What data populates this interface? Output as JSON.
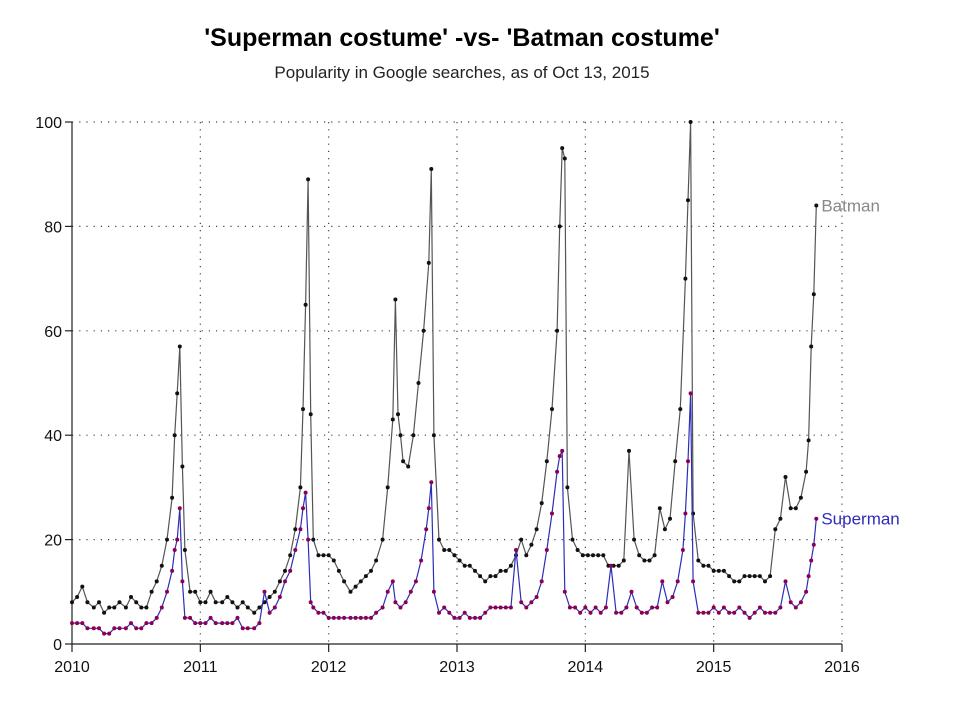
{
  "chart_data": {
    "type": "line",
    "title": "'Superman costume' -vs- 'Batman costume'",
    "subtitle": "Popularity in Google searches, as of Oct 13, 2015",
    "xlabel": "",
    "ylabel": "",
    "xlim": [
      2010,
      2016
    ],
    "ylim": [
      0,
      100
    ],
    "x_ticks": [
      "2010",
      "2011",
      "2012",
      "2013",
      "2014",
      "2015",
      "2016"
    ],
    "y_ticks": [
      "0",
      "20",
      "40",
      "60",
      "80",
      "100"
    ],
    "grid": "dotted, both axes",
    "legend": "inline labels at series end",
    "colors": {
      "batman": "#555555",
      "superman": "#2d2db8",
      "superman_markers": "#8b0050"
    },
    "series": [
      {
        "name": "Batman",
        "color": "#555555",
        "points": [
          [
            2010.0,
            8
          ],
          [
            2010.04,
            9
          ],
          [
            2010.08,
            11
          ],
          [
            2010.12,
            8
          ],
          [
            2010.17,
            7
          ],
          [
            2010.21,
            8
          ],
          [
            2010.25,
            6
          ],
          [
            2010.29,
            7
          ],
          [
            2010.33,
            7
          ],
          [
            2010.37,
            8
          ],
          [
            2010.42,
            7
          ],
          [
            2010.46,
            9
          ],
          [
            2010.5,
            8
          ],
          [
            2010.54,
            7
          ],
          [
            2010.58,
            7
          ],
          [
            2010.62,
            10
          ],
          [
            2010.66,
            12
          ],
          [
            2010.7,
            15
          ],
          [
            2010.74,
            20
          ],
          [
            2010.78,
            28
          ],
          [
            2010.8,
            40
          ],
          [
            2010.82,
            48
          ],
          [
            2010.84,
            57
          ],
          [
            2010.86,
            34
          ],
          [
            2010.88,
            18
          ],
          [
            2010.92,
            10
          ],
          [
            2010.96,
            10
          ],
          [
            2011.0,
            8
          ],
          [
            2011.04,
            8
          ],
          [
            2011.08,
            10
          ],
          [
            2011.12,
            8
          ],
          [
            2011.17,
            8
          ],
          [
            2011.21,
            9
          ],
          [
            2011.25,
            8
          ],
          [
            2011.29,
            7
          ],
          [
            2011.33,
            8
          ],
          [
            2011.37,
            7
          ],
          [
            2011.42,
            6
          ],
          [
            2011.46,
            7
          ],
          [
            2011.5,
            8
          ],
          [
            2011.54,
            9
          ],
          [
            2011.58,
            10
          ],
          [
            2011.62,
            12
          ],
          [
            2011.66,
            14
          ],
          [
            2011.7,
            17
          ],
          [
            2011.74,
            22
          ],
          [
            2011.78,
            30
          ],
          [
            2011.8,
            45
          ],
          [
            2011.82,
            65
          ],
          [
            2011.84,
            89
          ],
          [
            2011.86,
            44
          ],
          [
            2011.88,
            20
          ],
          [
            2011.92,
            17
          ],
          [
            2011.96,
            17
          ],
          [
            2012.0,
            17
          ],
          [
            2012.04,
            16
          ],
          [
            2012.08,
            14
          ],
          [
            2012.12,
            12
          ],
          [
            2012.17,
            10
          ],
          [
            2012.21,
            11
          ],
          [
            2012.25,
            12
          ],
          [
            2012.29,
            13
          ],
          [
            2012.33,
            14
          ],
          [
            2012.37,
            16
          ],
          [
            2012.42,
            20
          ],
          [
            2012.46,
            30
          ],
          [
            2012.5,
            43
          ],
          [
            2012.52,
            66
          ],
          [
            2012.54,
            44
          ],
          [
            2012.56,
            40
          ],
          [
            2012.58,
            35
          ],
          [
            2012.62,
            34
          ],
          [
            2012.66,
            40
          ],
          [
            2012.7,
            50
          ],
          [
            2012.74,
            60
          ],
          [
            2012.78,
            73
          ],
          [
            2012.8,
            91
          ],
          [
            2012.82,
            40
          ],
          [
            2012.86,
            20
          ],
          [
            2012.9,
            18
          ],
          [
            2012.94,
            18
          ],
          [
            2012.98,
            17
          ],
          [
            2013.02,
            16
          ],
          [
            2013.06,
            15
          ],
          [
            2013.1,
            15
          ],
          [
            2013.14,
            14
          ],
          [
            2013.18,
            13
          ],
          [
            2013.22,
            12
          ],
          [
            2013.26,
            13
          ],
          [
            2013.3,
            13
          ],
          [
            2013.34,
            14
          ],
          [
            2013.38,
            14
          ],
          [
            2013.42,
            15
          ],
          [
            2013.46,
            17
          ],
          [
            2013.5,
            20
          ],
          [
            2013.54,
            17
          ],
          [
            2013.58,
            19
          ],
          [
            2013.62,
            22
          ],
          [
            2013.66,
            27
          ],
          [
            2013.7,
            35
          ],
          [
            2013.74,
            45
          ],
          [
            2013.78,
            60
          ],
          [
            2013.8,
            80
          ],
          [
            2013.82,
            95
          ],
          [
            2013.84,
            93
          ],
          [
            2013.86,
            30
          ],
          [
            2013.9,
            20
          ],
          [
            2013.94,
            18
          ],
          [
            2013.98,
            17
          ],
          [
            2014.02,
            17
          ],
          [
            2014.06,
            17
          ],
          [
            2014.1,
            17
          ],
          [
            2014.14,
            17
          ],
          [
            2014.18,
            15
          ],
          [
            2014.22,
            15
          ],
          [
            2014.26,
            15
          ],
          [
            2014.3,
            16
          ],
          [
            2014.34,
            37
          ],
          [
            2014.38,
            20
          ],
          [
            2014.42,
            17
          ],
          [
            2014.46,
            16
          ],
          [
            2014.5,
            16
          ],
          [
            2014.54,
            17
          ],
          [
            2014.58,
            26
          ],
          [
            2014.62,
            22
          ],
          [
            2014.66,
            24
          ],
          [
            2014.7,
            35
          ],
          [
            2014.74,
            45
          ],
          [
            2014.78,
            70
          ],
          [
            2014.8,
            85
          ],
          [
            2014.82,
            100
          ],
          [
            2014.84,
            25
          ],
          [
            2014.88,
            16
          ],
          [
            2014.92,
            15
          ],
          [
            2014.96,
            15
          ],
          [
            2015.0,
            14
          ],
          [
            2015.04,
            14
          ],
          [
            2015.08,
            14
          ],
          [
            2015.12,
            13
          ],
          [
            2015.16,
            12
          ],
          [
            2015.2,
            12
          ],
          [
            2015.24,
            13
          ],
          [
            2015.28,
            13
          ],
          [
            2015.32,
            13
          ],
          [
            2015.36,
            13
          ],
          [
            2015.4,
            12
          ],
          [
            2015.44,
            13
          ],
          [
            2015.48,
            22
          ],
          [
            2015.52,
            24
          ],
          [
            2015.56,
            32
          ],
          [
            2015.6,
            26
          ],
          [
            2015.64,
            26
          ],
          [
            2015.68,
            28
          ],
          [
            2015.72,
            33
          ],
          [
            2015.74,
            39
          ],
          [
            2015.76,
            57
          ],
          [
            2015.78,
            67
          ],
          [
            2015.8,
            84
          ]
        ]
      },
      {
        "name": "Superman",
        "color": "#2d2db8",
        "points": [
          [
            2010.0,
            4
          ],
          [
            2010.04,
            4
          ],
          [
            2010.08,
            4
          ],
          [
            2010.12,
            3
          ],
          [
            2010.17,
            3
          ],
          [
            2010.21,
            3
          ],
          [
            2010.25,
            2
          ],
          [
            2010.29,
            2
          ],
          [
            2010.33,
            3
          ],
          [
            2010.37,
            3
          ],
          [
            2010.42,
            3
          ],
          [
            2010.46,
            4
          ],
          [
            2010.5,
            3
          ],
          [
            2010.54,
            3
          ],
          [
            2010.58,
            4
          ],
          [
            2010.62,
            4
          ],
          [
            2010.66,
            5
          ],
          [
            2010.7,
            7
          ],
          [
            2010.74,
            10
          ],
          [
            2010.78,
            14
          ],
          [
            2010.8,
            18
          ],
          [
            2010.82,
            20
          ],
          [
            2010.84,
            26
          ],
          [
            2010.86,
            12
          ],
          [
            2010.88,
            5
          ],
          [
            2010.92,
            5
          ],
          [
            2010.96,
            4
          ],
          [
            2011.0,
            4
          ],
          [
            2011.04,
            4
          ],
          [
            2011.08,
            5
          ],
          [
            2011.12,
            4
          ],
          [
            2011.17,
            4
          ],
          [
            2011.21,
            4
          ],
          [
            2011.25,
            4
          ],
          [
            2011.29,
            5
          ],
          [
            2011.33,
            3
          ],
          [
            2011.37,
            3
          ],
          [
            2011.42,
            3
          ],
          [
            2011.46,
            4
          ],
          [
            2011.5,
            10
          ],
          [
            2011.54,
            6
          ],
          [
            2011.58,
            7
          ],
          [
            2011.62,
            9
          ],
          [
            2011.66,
            12
          ],
          [
            2011.7,
            14
          ],
          [
            2011.74,
            18
          ],
          [
            2011.78,
            22
          ],
          [
            2011.8,
            26
          ],
          [
            2011.82,
            29
          ],
          [
            2011.84,
            20
          ],
          [
            2011.86,
            8
          ],
          [
            2011.88,
            7
          ],
          [
            2011.92,
            6
          ],
          [
            2011.96,
            6
          ],
          [
            2012.0,
            5
          ],
          [
            2012.04,
            5
          ],
          [
            2012.08,
            5
          ],
          [
            2012.12,
            5
          ],
          [
            2012.17,
            5
          ],
          [
            2012.21,
            5
          ],
          [
            2012.25,
            5
          ],
          [
            2012.29,
            5
          ],
          [
            2012.33,
            5
          ],
          [
            2012.37,
            6
          ],
          [
            2012.42,
            7
          ],
          [
            2012.46,
            10
          ],
          [
            2012.5,
            12
          ],
          [
            2012.52,
            8
          ],
          [
            2012.56,
            7
          ],
          [
            2012.6,
            8
          ],
          [
            2012.64,
            10
          ],
          [
            2012.68,
            12
          ],
          [
            2012.72,
            16
          ],
          [
            2012.76,
            22
          ],
          [
            2012.78,
            26
          ],
          [
            2012.8,
            31
          ],
          [
            2012.82,
            10
          ],
          [
            2012.86,
            6
          ],
          [
            2012.9,
            7
          ],
          [
            2012.94,
            6
          ],
          [
            2012.98,
            5
          ],
          [
            2013.02,
            5
          ],
          [
            2013.06,
            6
          ],
          [
            2013.1,
            5
          ],
          [
            2013.14,
            5
          ],
          [
            2013.18,
            5
          ],
          [
            2013.22,
            6
          ],
          [
            2013.26,
            7
          ],
          [
            2013.3,
            7
          ],
          [
            2013.34,
            7
          ],
          [
            2013.38,
            7
          ],
          [
            2013.42,
            7
          ],
          [
            2013.46,
            18
          ],
          [
            2013.5,
            8
          ],
          [
            2013.54,
            7
          ],
          [
            2013.58,
            8
          ],
          [
            2013.62,
            9
          ],
          [
            2013.66,
            12
          ],
          [
            2013.7,
            18
          ],
          [
            2013.74,
            25
          ],
          [
            2013.78,
            33
          ],
          [
            2013.8,
            36
          ],
          [
            2013.82,
            37
          ],
          [
            2013.84,
            10
          ],
          [
            2013.88,
            7
          ],
          [
            2013.92,
            7
          ],
          [
            2013.96,
            6
          ],
          [
            2014.0,
            7
          ],
          [
            2014.04,
            6
          ],
          [
            2014.08,
            7
          ],
          [
            2014.12,
            6
          ],
          [
            2014.16,
            7
          ],
          [
            2014.2,
            15
          ],
          [
            2014.24,
            6
          ],
          [
            2014.28,
            6
          ],
          [
            2014.32,
            7
          ],
          [
            2014.36,
            10
          ],
          [
            2014.4,
            7
          ],
          [
            2014.44,
            6
          ],
          [
            2014.48,
            6
          ],
          [
            2014.52,
            7
          ],
          [
            2014.56,
            7
          ],
          [
            2014.6,
            12
          ],
          [
            2014.64,
            8
          ],
          [
            2014.68,
            9
          ],
          [
            2014.72,
            12
          ],
          [
            2014.76,
            18
          ],
          [
            2014.78,
            25
          ],
          [
            2014.8,
            35
          ],
          [
            2014.82,
            48
          ],
          [
            2014.84,
            12
          ],
          [
            2014.88,
            6
          ],
          [
            2014.92,
            6
          ],
          [
            2014.96,
            6
          ],
          [
            2015.0,
            7
          ],
          [
            2015.04,
            6
          ],
          [
            2015.08,
            7
          ],
          [
            2015.12,
            6
          ],
          [
            2015.16,
            6
          ],
          [
            2015.2,
            7
          ],
          [
            2015.24,
            6
          ],
          [
            2015.28,
            5
          ],
          [
            2015.32,
            6
          ],
          [
            2015.36,
            7
          ],
          [
            2015.4,
            6
          ],
          [
            2015.44,
            6
          ],
          [
            2015.48,
            6
          ],
          [
            2015.52,
            7
          ],
          [
            2015.56,
            12
          ],
          [
            2015.6,
            8
          ],
          [
            2015.64,
            7
          ],
          [
            2015.68,
            8
          ],
          [
            2015.72,
            10
          ],
          [
            2015.74,
            13
          ],
          [
            2015.76,
            16
          ],
          [
            2015.78,
            19
          ],
          [
            2015.8,
            24
          ]
        ]
      }
    ]
  }
}
